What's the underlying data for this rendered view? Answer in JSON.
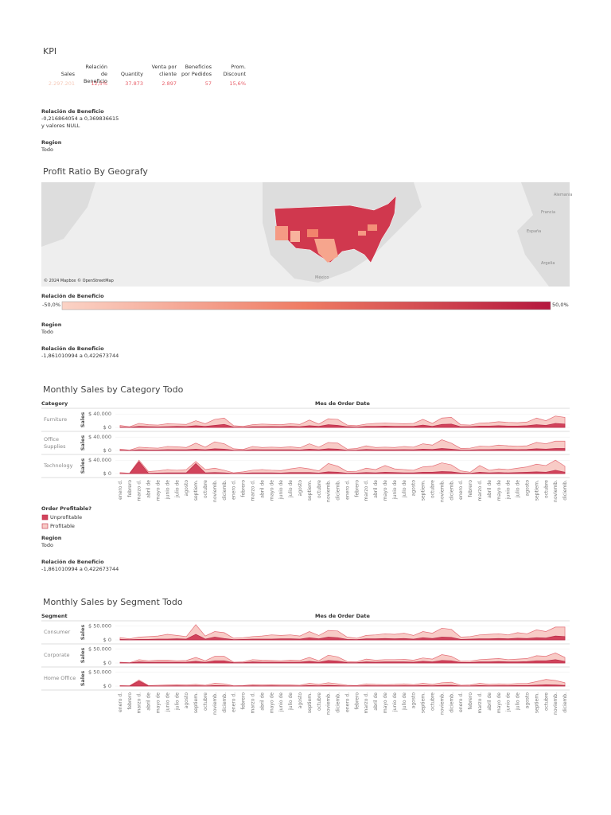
{
  "kpi": {
    "title": "KPI",
    "headers": [
      "Sales",
      "Relación de\nBeneficio",
      "Quantity",
      "Venta por\ncliente",
      "Beneficios\npor Pedidos",
      "Prom.\nDiscount"
    ],
    "values": [
      "2.297.201",
      "12,5%",
      "37.873",
      "2.897",
      "57",
      "15,6%"
    ]
  },
  "filters_top": [
    {
      "label": "Relación de Beneficio",
      "lines": [
        "-0,216864054 a 0,369836615",
        "y valores NULL"
      ]
    },
    {
      "label": "Region",
      "lines": [
        "Todo"
      ]
    }
  ],
  "map": {
    "title": "Profit Ratio By Geografy",
    "attribution": "© 2024 Mapbox © OpenStreetMap",
    "places": [
      "México",
      "Francia",
      "España",
      "Argelia",
      "Alemania"
    ]
  },
  "map_legend": {
    "title": "Relación de Beneficio",
    "min_label": "-50,0%",
    "max_label": "50,0%"
  },
  "filters_map": [
    {
      "label": "Region",
      "lines": [
        "Todo"
      ]
    },
    {
      "label": "Relación de Beneficio",
      "lines": [
        "-1,861010994 a 0,422673744"
      ]
    }
  ],
  "legend_title": "Order Profitable?",
  "filters_cat": [
    {
      "label": "Region",
      "lines": [
        "Todo"
      ]
    },
    {
      "label": "Relación de Beneficio",
      "lines": [
        "-1,861010994 a 0,422673744"
      ]
    }
  ],
  "chart_data": [
    {
      "type": "area",
      "title": "Monthly Sales by Category Todo",
      "row_header": "Category",
      "column_header": "Mes de Order Date",
      "axis_label": "Sales",
      "categories": [
        "enero d.",
        "febrero",
        "marzo d.",
        "abril de",
        "mayo de",
        "junio de",
        "julio de",
        "agosto",
        "septiem.",
        "octubre",
        "noviemb.",
        "diciemb.",
        "enero d.",
        "febrero",
        "marzo d.",
        "abril de",
        "mayo de",
        "junio de",
        "julio de",
        "agosto",
        "septiem.",
        "octubre",
        "noviemb.",
        "diciemb.",
        "enero d.",
        "febrero",
        "marzo d.",
        "abril de",
        "mayo de",
        "junio de",
        "julio de",
        "agosto",
        "septiem.",
        "octubre",
        "noviemb.",
        "diciemb.",
        "enero d.",
        "febrero",
        "marzo d.",
        "abril de",
        "mayo de",
        "junio de",
        "julio de",
        "agosto",
        "septiem.",
        "octubre",
        "noviemb.",
        "diciemb."
      ],
      "ylim": [
        0,
        50000
      ],
      "yticks": [
        {
          "value": 40000,
          "label": "$ 40.000"
        },
        {
          "value": 0,
          "label": "$ 0"
        }
      ],
      "panels": [
        {
          "name": "Furniture",
          "series": [
            {
              "name": "Profitable",
              "color": "#f8cbc6",
              "values": [
                6000,
                2000,
                12000,
                8000,
                7000,
                11000,
                10000,
                9000,
                20000,
                11000,
                24000,
                28000,
                5000,
                3000,
                8000,
                10000,
                9000,
                8000,
                11000,
                9000,
                22000,
                10000,
                26000,
                24000,
                7000,
                5000,
                10000,
                12000,
                13000,
                12000,
                11000,
                12000,
                24000,
                12000,
                28000,
                30000,
                8000,
                7000,
                13000,
                14000,
                17000,
                15000,
                14000,
                16000,
                28000,
                20000,
                34000,
                30000
              ]
            },
            {
              "name": "Unprofitable",
              "color": "#d2435b",
              "values": [
                1000,
                500,
                3000,
                2000,
                1500,
                2000,
                3000,
                2500,
                5000,
                3000,
                6000,
                9000,
                1000,
                500,
                2000,
                2000,
                2500,
                2000,
                3000,
                2000,
                5000,
                3000,
                8000,
                6000,
                2000,
                1000,
                3000,
                3000,
                4000,
                3000,
                3000,
                3000,
                7000,
                3000,
                9000,
                10000,
                2000,
                2000,
                4000,
                4000,
                5000,
                4000,
                4000,
                5000,
                8000,
                6000,
                12000,
                10000
              ]
            }
          ]
        },
        {
          "name": "Office\nSupplies",
          "series": [
            {
              "name": "Profitable",
              "color": "#f8cbc6",
              "values": [
                4000,
                1000,
                10000,
                8000,
                7000,
                12000,
                11000,
                9000,
                22000,
                10000,
                26000,
                20000,
                5000,
                3000,
                12000,
                9000,
                10000,
                9000,
                11000,
                8000,
                20000,
                10000,
                24000,
                22000,
                4000,
                6000,
                14000,
                9000,
                10000,
                9000,
                12000,
                10000,
                20000,
                16000,
                32000,
                22000,
                6000,
                7000,
                13000,
                12000,
                16000,
                14000,
                13000,
                14000,
                24000,
                20000,
                28000,
                28000
              ]
            },
            {
              "name": "Unprofitable",
              "color": "#d2435b",
              "values": [
                800,
                300,
                2000,
                1500,
                1500,
                2500,
                2000,
                2000,
                4000,
                2000,
                5000,
                4000,
                1000,
                600,
                2500,
                2000,
                2000,
                2000,
                2000,
                1500,
                4000,
                2000,
                5000,
                4000,
                800,
                1200,
                3000,
                2000,
                2000,
                2000,
                2500,
                2000,
                4000,
                3000,
                6000,
                4000,
                1200,
                1500,
                2500,
                2500,
                3000,
                3000,
                2500,
                3000,
                5000,
                4000,
                6000,
                6000
              ]
            }
          ]
        },
        {
          "name": "Technology",
          "series": [
            {
              "name": "Profitable",
              "color": "#f8cbc6",
              "values": [
                3000,
                1000,
                40000,
                6000,
                8000,
                12000,
                10000,
                12000,
                36000,
                12000,
                16000,
                10000,
                2000,
                5000,
                10000,
                12000,
                10000,
                9000,
                14000,
                18000,
                14000,
                8000,
                30000,
                22000,
                6000,
                7000,
                16000,
                12000,
                24000,
                14000,
                12000,
                10000,
                20000,
                22000,
                32000,
                26000,
                8000,
                4000,
                24000,
                10000,
                14000,
                12000,
                16000,
                20000,
                28000,
                24000,
                40000,
                22000
              ]
            },
            {
              "name": "Unprofitable",
              "color": "#d2435b",
              "values": [
                500,
                300,
                36000,
                1000,
                1500,
                2000,
                2000,
                2000,
                30000,
                2000,
                3000,
                2000,
                400,
                1000,
                2000,
                2000,
                2000,
                1500,
                3000,
                3000,
                3000,
                1500,
                5000,
                4000,
                1000,
                1500,
                3000,
                2000,
                4000,
                3000,
                2000,
                2000,
                4000,
                4000,
                6000,
                5000,
                1500,
                800,
                4000,
                2000,
                3000,
                2000,
                3000,
                4000,
                5000,
                4000,
                10000,
                4000
              ]
            }
          ]
        }
      ]
    },
    {
      "type": "area",
      "title": "Monthly Sales by Segment Todo",
      "row_header": "Segment",
      "column_header": "Mes de Order Date",
      "axis_label": "Sales",
      "categories": [
        "enero d.",
        "febrero",
        "marzo d.",
        "abril de",
        "mayo de",
        "junio de",
        "julio de",
        "agosto",
        "septiem.",
        "octubre",
        "noviemb.",
        "diciemb.",
        "enero d.",
        "febrero",
        "marzo d.",
        "abril de",
        "mayo de",
        "junio de",
        "julio de",
        "agosto",
        "septiem.",
        "octubre",
        "noviemb.",
        "diciemb.",
        "enero d.",
        "febrero",
        "marzo d.",
        "abril de",
        "mayo de",
        "junio de",
        "julio de",
        "agosto",
        "septiem.",
        "octubre",
        "noviemb.",
        "diciemb.",
        "enero d.",
        "febrero",
        "marzo d.",
        "abril de",
        "mayo de",
        "junio de",
        "julio de",
        "agosto",
        "septiem.",
        "octubre",
        "noviemb.",
        "diciemb."
      ],
      "ylim": [
        0,
        60000
      ],
      "yticks": [
        {
          "value": 50000,
          "label": "$ 50.000"
        },
        {
          "value": 0,
          "label": "$ 0"
        }
      ],
      "panels": [
        {
          "name": "Consumer",
          "series": [
            {
              "name": "Profitable",
              "color": "#f8cbc6",
              "values": [
                8000,
                4000,
                10000,
                12000,
                14000,
                20000,
                16000,
                12000,
                55000,
                14000,
                30000,
                26000,
                6000,
                8000,
                12000,
                14000,
                18000,
                16000,
                18000,
                14000,
                30000,
                16000,
                34000,
                32000,
                10000,
                6000,
                16000,
                18000,
                22000,
                20000,
                24000,
                16000,
                30000,
                24000,
                42000,
                38000,
                10000,
                12000,
                18000,
                20000,
                22000,
                18000,
                26000,
                22000,
                36000,
                30000,
                46000,
                46000
              ]
            },
            {
              "name": "Unprofitable",
              "color": "#d2435b",
              "values": [
                2000,
                1000,
                2000,
                2000,
                3000,
                3000,
                4000,
                3000,
                20000,
                3000,
                10000,
                5000,
                1000,
                2000,
                3000,
                3000,
                3000,
                4000,
                4000,
                3000,
                8000,
                4000,
                10000,
                8000,
                2000,
                1000,
                4000,
                4000,
                5000,
                4000,
                5000,
                3000,
                8000,
                5000,
                10000,
                9000,
                2000,
                3000,
                4000,
                4000,
                5000,
                4000,
                6000,
                5000,
                8000,
                7000,
                14000,
                12000
              ]
            }
          ]
        },
        {
          "name": "Corporate",
          "series": [
            {
              "name": "Profitable",
              "color": "#f8cbc6",
              "values": [
                3000,
                1000,
                12000,
                8000,
                10000,
                10000,
                8000,
                9000,
                20000,
                8000,
                24000,
                24000,
                3000,
                4000,
                12000,
                10000,
                9000,
                8000,
                10000,
                9000,
                20000,
                8000,
                28000,
                22000,
                5000,
                4000,
                14000,
                10000,
                12000,
                12000,
                13000,
                10000,
                18000,
                14000,
                30000,
                24000,
                6000,
                7000,
                12000,
                14000,
                16000,
                12000,
                14000,
                16000,
                26000,
                24000,
                36000,
                20000
              ]
            },
            {
              "name": "Unprofitable",
              "color": "#d2435b",
              "values": [
                1000,
                300,
                4000,
                2500,
                3000,
                3000,
                2500,
                3000,
                6000,
                2500,
                8000,
                8000,
                1000,
                1200,
                4000,
                3000,
                3000,
                2500,
                3000,
                3000,
                6000,
                2500,
                9000,
                7000,
                1500,
                1200,
                4000,
                3000,
                4000,
                4000,
                4000,
                3000,
                6000,
                4000,
                9000,
                8000,
                2000,
                2000,
                4000,
                4000,
                5000,
                4000,
                4000,
                5000,
                8000,
                8000,
                12000,
                6000
              ]
            }
          ]
        },
        {
          "name": "Home Office",
          "series": [
            {
              "name": "Profitable",
              "color": "#f8cbc6",
              "values": [
                2000,
                1000,
                22000,
                2000,
                3000,
                4000,
                5000,
                4000,
                6000,
                3000,
                10000,
                8000,
                1000,
                2000,
                5000,
                4000,
                5000,
                4000,
                4000,
                3000,
                10000,
                6000,
                12000,
                8000,
                3000,
                2000,
                8000,
                6000,
                5000,
                6000,
                8000,
                5000,
                10000,
                6000,
                12000,
                14000,
                3000,
                4000,
                10000,
                6000,
                8000,
                7000,
                9000,
                9000,
                16000,
                24000,
                20000,
                12000
              ]
            },
            {
              "name": "Unprofitable",
              "color": "#d2435b",
              "values": [
                400,
                200,
                18000,
                500,
                600,
                800,
                1000,
                800,
                1200,
                600,
                2000,
                1600,
                200,
                400,
                1000,
                800,
                1000,
                800,
                800,
                600,
                2000,
                1200,
                2400,
                1600,
                600,
                400,
                1600,
                1200,
                1000,
                1200,
                1600,
                1000,
                2000,
                1200,
                2400,
                2800,
                600,
                800,
                2000,
                1200,
                1600,
                1400,
                1800,
                1800,
                3200,
                4800,
                4000,
                2400
              ]
            }
          ]
        }
      ]
    }
  ]
}
